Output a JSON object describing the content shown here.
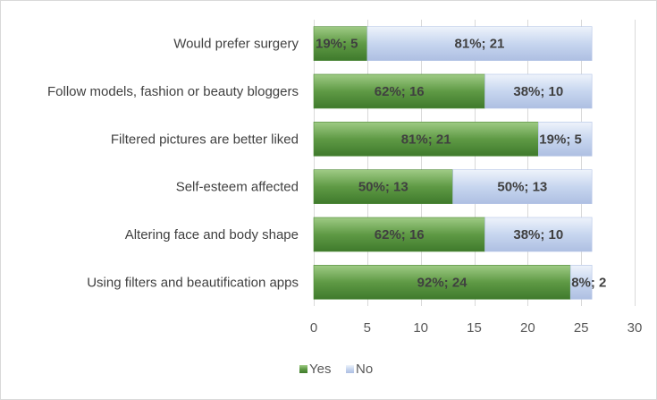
{
  "chart_data": {
    "type": "bar",
    "orientation": "horizontal",
    "stacked": true,
    "categories": [
      "Would prefer surgery",
      "Follow models, fashion or beauty bloggers",
      "Filtered pictures are better liked",
      "Self-esteem affected",
      "Altering face and body shape",
      "Using filters and beautification apps"
    ],
    "series": [
      {
        "name": "Yes",
        "color": "#6aa84f",
        "values": [
          5,
          16,
          21,
          13,
          16,
          24
        ],
        "labels": [
          "19%; 5",
          "62%; 16",
          "81%; 21",
          "50%; 13",
          "62%; 16",
          "92%; 24"
        ]
      },
      {
        "name": "No",
        "color": "#c5d4ee",
        "values": [
          21,
          10,
          5,
          13,
          10,
          2
        ],
        "labels": [
          "81%; 21",
          "38%; 10",
          "19%; 5",
          "50%; 13",
          "38%; 10",
          "8%; 2"
        ]
      }
    ],
    "xlim": [
      0,
      30
    ],
    "xticks": [
      "0",
      "5",
      "10",
      "15",
      "20",
      "25",
      "30"
    ],
    "grid": "vertical",
    "legend": "bottom"
  }
}
